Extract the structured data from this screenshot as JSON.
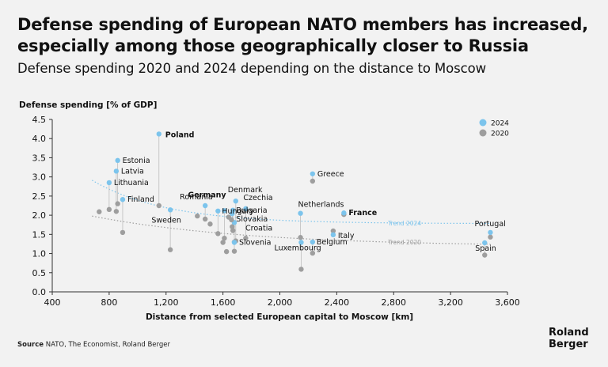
{
  "header": {
    "title": "Defense spending of European NATO members has increased, especially among those geographically closer to Russia",
    "subtitle": "Defense spending 2020 and 2024 depending on the distance to Moscow"
  },
  "footer": {
    "source_label": "Source",
    "source_text": " NATO, The Economist, Roland Berger",
    "logo_line1": "Roland",
    "logo_line2": "Berger"
  },
  "colors": {
    "s2024": "#7cc4ec",
    "s2020": "#9e9e9e",
    "background": "#f2f2f2"
  },
  "chart_data": {
    "type": "scatter",
    "title": "Defense spending of European NATO members has increased, especially among those geographically closer to Russia",
    "subtitle": "Defense spending 2020 and 2024 depending on the distance to Moscow",
    "xlabel": "Distance from selected European capital to Moscow [km]",
    "ylabel": "Defense spending [% of GDP]",
    "xlim": [
      400,
      3600
    ],
    "ylim": [
      0,
      4.5
    ],
    "xticks": [
      "400",
      "800",
      "1,200",
      "1,600",
      "2,000",
      "2,400",
      "2,800",
      "3,200",
      "3,600"
    ],
    "yticks": [
      "0.0",
      "0.5",
      "1.0",
      "1.5",
      "2.0",
      "2.5",
      "3.0",
      "3.5",
      "4.0",
      "4.5"
    ],
    "legend_position": "top-right",
    "series": [
      {
        "name": "2024",
        "color": "#7cc4ec"
      },
      {
        "name": "2020",
        "color": "#9e9e9e"
      }
    ],
    "trend_labels": {
      "t2024": "Trend 2024",
      "t2020": "Trend 2020"
    },
    "points": [
      {
        "country": "Poland",
        "x": 1150,
        "y2024": 4.12,
        "y2020": 2.25,
        "bold": true
      },
      {
        "country": "Estonia",
        "x": 860,
        "y2024": 3.43,
        "y2020": 2.3
      },
      {
        "country": "Latvia",
        "x": 850,
        "y2024": 3.15,
        "y2020": 2.1
      },
      {
        "country": "Lithuania",
        "x": 800,
        "y2024": 2.85,
        "y2020": 2.15
      },
      {
        "country": "Finland",
        "x": 895,
        "y2024": 2.41,
        "y2020": 1.55
      },
      {
        "country": "Sweden",
        "x": 1230,
        "y2024": 2.14,
        "y2020": 1.1
      },
      {
        "country": "Hungary",
        "x": 1565,
        "y2024": 2.11,
        "y2020": 1.52
      },
      {
        "country": "Romania",
        "x": 1475,
        "y2024": 2.25,
        "y2020": 1.9
      },
      {
        "country": "Germany",
        "x": 1610,
        "y2024": 2.12,
        "y2020": 1.4,
        "bold": true
      },
      {
        "country": "Denmark",
        "x": 1690,
        "y2024": 2.37,
        "y2020": 1.33
      },
      {
        "country": "Czechia",
        "x": 1760,
        "y2024": 2.17,
        "y2020": 1.4
      },
      {
        "country": "Bulgaria",
        "x": 1670,
        "y2024": 2.13,
        "y2020": 1.6
      },
      {
        "country": "Slovakia",
        "x": 1665,
        "y2024": 2.04,
        "y2020": 1.7
      },
      {
        "country": "Croatia",
        "x": 1680,
        "y2024": 1.81,
        "y2020": 1.3
      },
      {
        "country": "Slovenia",
        "x": 1680,
        "y2024": 1.29,
        "y2020": 1.06
      },
      {
        "country": "Greece",
        "x": 2230,
        "y2024": 3.08,
        "y2020": 2.89
      },
      {
        "country": "Netherlands",
        "x": 2145,
        "y2024": 2.05,
        "y2020": 1.42
      },
      {
        "country": "France",
        "x": 2450,
        "y2024": 2.06,
        "y2020": 2.02,
        "bold": true
      },
      {
        "country": "Italy",
        "x": 2375,
        "y2024": 1.49,
        "y2020": 1.59
      },
      {
        "country": "Belgium",
        "x": 2230,
        "y2024": 1.3,
        "y2020": 1.01
      },
      {
        "country": "Luxembourg",
        "x": 2150,
        "y2024": 1.29,
        "y2020": 0.59
      },
      {
        "country": "Portugal",
        "x": 3480,
        "y2024": 1.55,
        "y2020": 1.43
      },
      {
        "country": "Spain",
        "x": 3440,
        "y2024": 1.28,
        "y2020": 0.96
      },
      {
        "x": 730,
        "y2020": 2.09
      },
      {
        "x": 1420,
        "y2020": 1.98
      },
      {
        "x": 1510,
        "y2020": 1.77
      },
      {
        "x": 1600,
        "y2020": 1.29
      },
      {
        "x": 1625,
        "y2020": 1.05
      },
      {
        "x": 1640,
        "y2020": 1.95
      },
      {
        "x": 1660,
        "y2020": 1.88
      }
    ]
  }
}
